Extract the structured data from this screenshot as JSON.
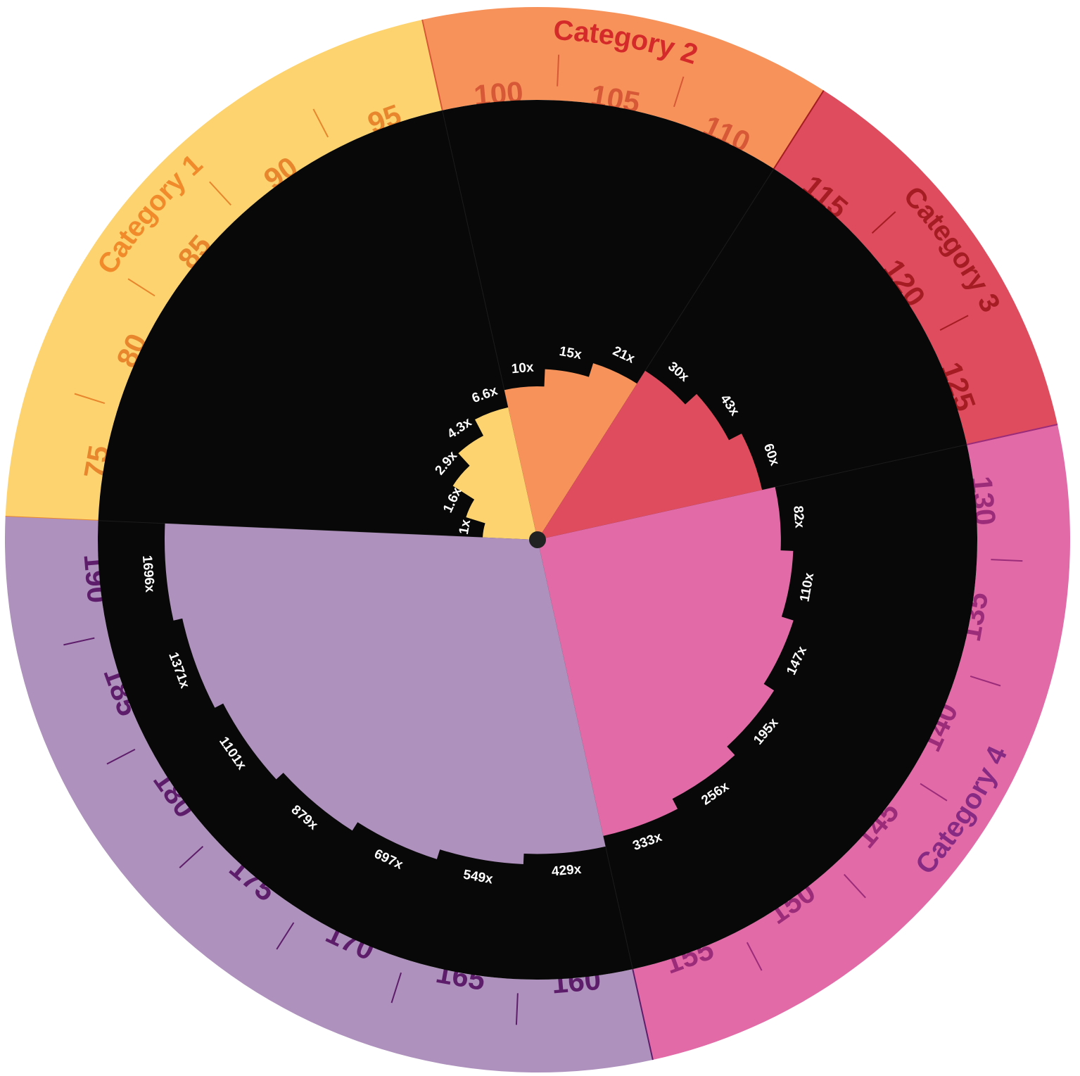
{
  "chart_data": {
    "type": "bar",
    "polar": true,
    "categories": [
      {
        "name": "Category 1",
        "color": "#fdd36f",
        "text_color": "#f08a2a",
        "dark_color": "#e7862d",
        "bars": [
          {
            "value": 1,
            "label": "1x"
          },
          {
            "value": 1.6,
            "label": "1.6x"
          },
          {
            "value": 2.9,
            "label": "2.9x"
          },
          {
            "value": 4.3,
            "label": "4.3x"
          },
          {
            "value": 6.6,
            "label": "6.6x"
          }
        ],
        "ticks": [
          {
            "value": 75,
            "label": "75"
          },
          {
            "value": 80,
            "label": "80"
          },
          {
            "value": 85,
            "label": "85"
          },
          {
            "value": 90,
            "label": "90"
          },
          {
            "value": 95,
            "label": "95"
          }
        ]
      },
      {
        "name": "Category 2",
        "color": "#f7925a",
        "text_color": "#d42a2a",
        "dark_color": "#d75836",
        "bars": [
          {
            "value": 10,
            "label": "10x"
          },
          {
            "value": 15,
            "label": "15x"
          },
          {
            "value": 21,
            "label": "21x"
          }
        ],
        "ticks": [
          {
            "value": 100,
            "label": "100"
          },
          {
            "value": 105,
            "label": "105"
          },
          {
            "value": 110,
            "label": "110"
          }
        ]
      },
      {
        "name": "Category 3",
        "color": "#de4c5e",
        "text_color": "#a51c22",
        "dark_color": "#a51c22",
        "bars": [
          {
            "value": 30,
            "label": "30x"
          },
          {
            "value": 43,
            "label": "43x"
          },
          {
            "value": 60,
            "label": "60x"
          }
        ],
        "ticks": [
          {
            "value": 115,
            "label": "115"
          },
          {
            "value": 120,
            "label": "120"
          },
          {
            "value": 125,
            "label": "125"
          }
        ]
      },
      {
        "name": "Category 4",
        "color": "#e26aa7",
        "text_color": "#862a84",
        "dark_color": "#9b2c7a",
        "bars": [
          {
            "value": 82,
            "label": "82x"
          },
          {
            "value": 110,
            "label": "110x"
          },
          {
            "value": 147,
            "label": "147x"
          },
          {
            "value": 195,
            "label": "195x"
          },
          {
            "value": 256,
            "label": "256x"
          },
          {
            "value": 333,
            "label": "333x"
          }
        ],
        "ticks": [
          {
            "value": 130,
            "label": "130"
          },
          {
            "value": 135,
            "label": "135"
          },
          {
            "value": 140,
            "label": "140"
          },
          {
            "value": 145,
            "label": "145"
          },
          {
            "value": 150,
            "label": "150"
          },
          {
            "value": 155,
            "label": "155"
          }
        ]
      },
      {
        "name": "",
        "color": "#ae91bd",
        "text_color": "#5e1d6a",
        "dark_color": "#5e1d6a",
        "bars": [
          {
            "value": 429,
            "label": "429x"
          },
          {
            "value": 549,
            "label": "549x"
          },
          {
            "value": 697,
            "label": "697x"
          },
          {
            "value": 879,
            "label": "879x"
          },
          {
            "value": 1101,
            "label": "1101x"
          },
          {
            "value": 1371,
            "label": "1371x"
          },
          {
            "value": 1696,
            "label": "1696x"
          }
        ],
        "ticks": [
          {
            "value": 160,
            "label": "160"
          },
          {
            "value": 165,
            "label": "165"
          },
          {
            "value": 170,
            "label": "170"
          },
          {
            "value": 175,
            "label": "175"
          },
          {
            "value": 180,
            "label": "180"
          },
          {
            "value": 185,
            "label": "185"
          },
          {
            "value": 190,
            "label": "190"
          }
        ]
      }
    ],
    "angular_axis": {
      "min": 72.5,
      "max": 192.5,
      "direction": "clockwise",
      "start": "left"
    },
    "radial_scale": "log",
    "background": "#080808"
  }
}
